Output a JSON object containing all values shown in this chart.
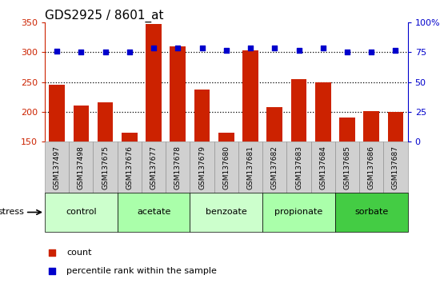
{
  "title": "GDS2925 / 8601_at",
  "samples": [
    "GSM137497",
    "GSM137498",
    "GSM137675",
    "GSM137676",
    "GSM137677",
    "GSM137678",
    "GSM137679",
    "GSM137680",
    "GSM137681",
    "GSM137682",
    "GSM137683",
    "GSM137684",
    "GSM137685",
    "GSM137686",
    "GSM137687"
  ],
  "counts": [
    245,
    211,
    216,
    165,
    348,
    310,
    238,
    165,
    304,
    208,
    255,
    250,
    190,
    201,
    200
  ],
  "percentile_ranks": [
    76,
    75,
    75,
    75,
    79,
    79,
    79,
    77,
    79,
    79,
    77,
    79,
    75,
    75,
    77
  ],
  "groups": [
    {
      "label": "control",
      "start": 0,
      "end": 3,
      "color": "#ccffcc"
    },
    {
      "label": "acetate",
      "start": 3,
      "end": 6,
      "color": "#aaffaa"
    },
    {
      "label": "benzoate",
      "start": 6,
      "end": 9,
      "color": "#ccffcc"
    },
    {
      "label": "propionate",
      "start": 9,
      "end": 12,
      "color": "#aaffaa"
    },
    {
      "label": "sorbate",
      "start": 12,
      "end": 15,
      "color": "#44cc44"
    }
  ],
  "ylim_left": [
    150,
    350
  ],
  "ylim_right": [
    0,
    100
  ],
  "bar_color": "#cc2200",
  "dot_color": "#0000cc",
  "bar_bottom": 150,
  "stress_label": "stress",
  "legend_count": "count",
  "legend_pct": "percentile rank within the sample",
  "title_fontsize": 11,
  "tick_fontsize": 8,
  "sample_label_fontsize": 6.5,
  "group_label_fontsize": 8,
  "legend_fontsize": 8
}
